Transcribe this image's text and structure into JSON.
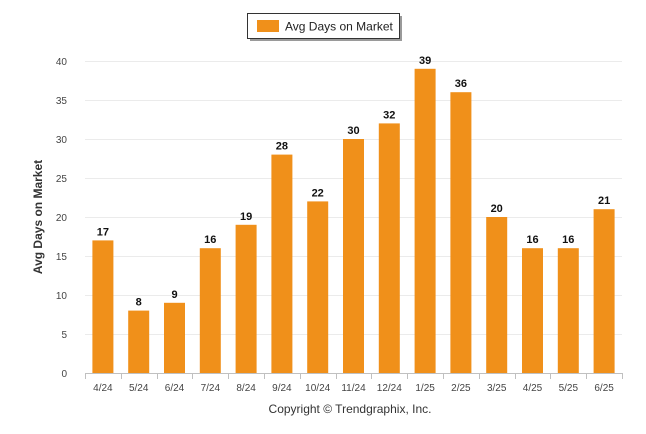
{
  "chart_data": {
    "type": "bar",
    "title": "",
    "xlabel": "",
    "ylabel": "Avg Days on Market",
    "categories": [
      "4/24",
      "5/24",
      "6/24",
      "7/24",
      "8/24",
      "9/24",
      "10/24",
      "11/24",
      "12/24",
      "1/25",
      "2/25",
      "3/25",
      "4/25",
      "5/25",
      "6/25"
    ],
    "series": [
      {
        "name": "Avg Days on Market",
        "color": "#f0901a",
        "values": [
          17,
          8,
          9,
          16,
          19,
          28,
          22,
          30,
          32,
          39,
          36,
          20,
          16,
          16,
          21
        ]
      }
    ],
    "ylim": [
      0,
      40
    ],
    "yticks": [
      0,
      5,
      10,
      15,
      20,
      25,
      30,
      35,
      40
    ],
    "grid": true,
    "legend_position": "top-center",
    "data_labels": true
  },
  "footer": {
    "copyright": "Copyright © Trendgraphix, Inc."
  }
}
